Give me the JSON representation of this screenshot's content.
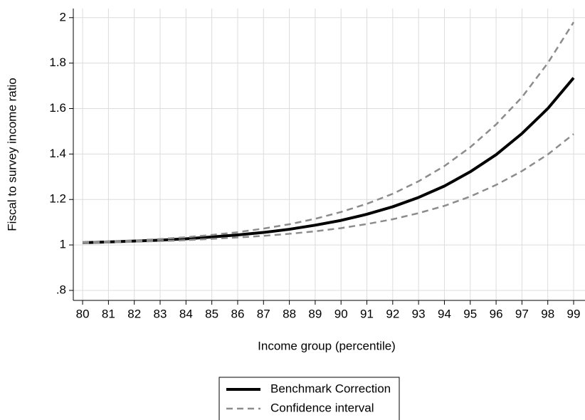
{
  "chart_data": {
    "type": "line",
    "x_label": "Income group (percentile)",
    "y_label": "Fiscal to survey income ratio",
    "x": [
      80,
      81,
      82,
      83,
      84,
      85,
      86,
      87,
      88,
      89,
      90,
      91,
      92,
      93,
      94,
      95,
      96,
      97,
      98,
      99
    ],
    "series": [
      {
        "name": "Benchmark Correction",
        "color": "#000000",
        "dash": "solid",
        "values": [
          1.01,
          1.013,
          1.017,
          1.021,
          1.027,
          1.035,
          1.044,
          1.055,
          1.069,
          1.087,
          1.108,
          1.135,
          1.168,
          1.209,
          1.259,
          1.322,
          1.397,
          1.49,
          1.6,
          1.735
        ]
      },
      {
        "name": "Confidence interval",
        "color": "#8c8c8c",
        "dash": "dashed",
        "upper": [
          1.012,
          1.016,
          1.02,
          1.026,
          1.034,
          1.044,
          1.056,
          1.072,
          1.091,
          1.115,
          1.145,
          1.181,
          1.225,
          1.28,
          1.347,
          1.43,
          1.53,
          1.65,
          1.8,
          1.98
        ],
        "lower": [
          1.008,
          1.011,
          1.014,
          1.017,
          1.021,
          1.027,
          1.033,
          1.04,
          1.049,
          1.06,
          1.074,
          1.092,
          1.113,
          1.14,
          1.172,
          1.213,
          1.264,
          1.325,
          1.398,
          1.488
        ]
      }
    ],
    "xlim": [
      79.64,
      99.44
    ],
    "ylim": [
      0.756,
      2.04
    ],
    "xticks": [
      80,
      81,
      82,
      83,
      84,
      85,
      86,
      87,
      88,
      89,
      90,
      91,
      92,
      93,
      94,
      95,
      96,
      97,
      98,
      99
    ],
    "yticks": [
      {
        "value": 0.8,
        "label": ".8"
      },
      1,
      1.2,
      1.4,
      1.6,
      1.8,
      2
    ],
    "grid": true,
    "legend": "bottom"
  }
}
